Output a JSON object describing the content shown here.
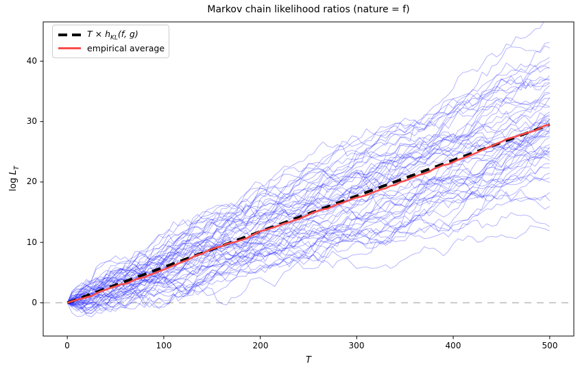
{
  "figure": {
    "title": "Markov chain likelihood ratios (nature = f)",
    "background_color": "#ffffff"
  },
  "axes": {
    "xlabel": "T",
    "ylabel": {
      "text": "log L_T",
      "pre": "log ",
      "base": "L",
      "sub": "T"
    },
    "xticks": [
      "0",
      "100",
      "200",
      "300",
      "400",
      "500"
    ],
    "yticks": [
      "0",
      "10",
      "20",
      "30",
      "40"
    ],
    "spine_color": "#000000",
    "tick_color": "#000000"
  },
  "legend": {
    "entries": [
      {
        "label": "T × h_KL(f, g)",
        "pre": "T",
        "times": " × ",
        "base": "h",
        "sub": "KL",
        "post": "(f, g)",
        "color": "#000000",
        "style": "dashed"
      },
      {
        "label": "empirical average",
        "color": "#fa4b4b",
        "style": "solid"
      }
    ],
    "position": "upper left"
  },
  "chart_data": {
    "type": "line",
    "title": "Markov chain likelihood ratios (nature = f)",
    "xlabel": "T",
    "ylabel": "log L_T",
    "xlim": [
      -25,
      525
    ],
    "ylim": [
      -5.5,
      46.5
    ],
    "xticks": [
      0,
      100,
      200,
      300,
      400,
      500
    ],
    "yticks": [
      0,
      10,
      20,
      30,
      40
    ],
    "grid": false,
    "legend_position": "upper left",
    "series": [
      {
        "name": "T × h_KL(f, g)",
        "type": "line",
        "style": "dashed",
        "color": "#000000",
        "linewidth": 4,
        "dash": "13 9",
        "x": [
          0,
          500
        ],
        "y": [
          0,
          29.5
        ]
      },
      {
        "name": "empirical average",
        "type": "line",
        "style": "solid",
        "color": "#fa4b4b",
        "linewidth": 2.6,
        "x": [
          0,
          500
        ],
        "y": [
          0,
          29.5
        ],
        "note": "mean of all sample trajectories; hugs the KL reference line"
      },
      {
        "name": "zero baseline",
        "type": "line",
        "style": "dashed",
        "color": "#b3b3b3",
        "linewidth": 1.4,
        "dash": "10 8",
        "x": [
          -25,
          525
        ],
        "y": [
          0,
          0
        ]
      }
    ],
    "trajectories": {
      "description": "Blue Monte-Carlo sample paths of the log likelihood ratio log L_T under nature f",
      "count": 55,
      "color": "#1a1aff",
      "alpha": 0.32,
      "linewidth": 1,
      "start": [
        0,
        0
      ],
      "t_max": 500,
      "t_step": 5,
      "drift_per_step": 0.059,
      "increment_std_per_step": 0.3,
      "seed": 11,
      "end_value_mean": 29.5,
      "end_value_range": [
        12,
        44
      ]
    }
  }
}
